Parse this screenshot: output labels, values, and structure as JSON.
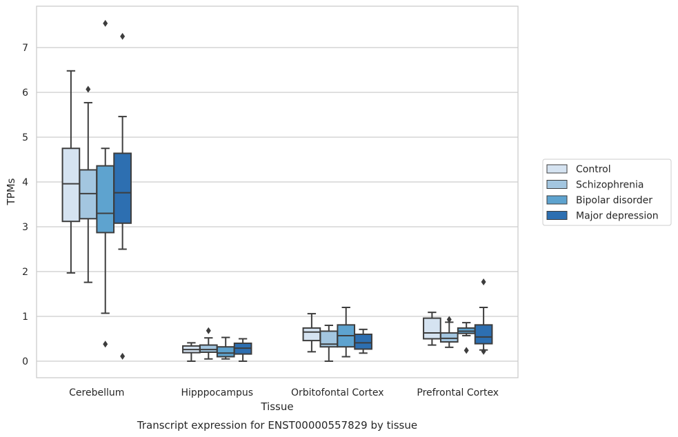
{
  "caption": "Transcript expression for ENST00000557829 by tissue",
  "chart_data": {
    "type": "box",
    "xlabel": "Tissue",
    "ylabel": "TPMs",
    "ylim": [
      -0.35,
      7.95
    ],
    "yticks": [
      0,
      1,
      2,
      3,
      4,
      5,
      6,
      7
    ],
    "grid": "horizontal",
    "legend_position": "right",
    "categories": [
      "Cerebellum",
      "Hipppocampus",
      "Orbitofontal Cortex",
      "Prefrontal Cortex"
    ],
    "series": [
      {
        "name": "Control",
        "color": "#d5e3f1",
        "boxes": [
          {
            "whisker_low": 1.97,
            "q1": 3.12,
            "median": 3.96,
            "q3": 4.75,
            "whisker_high": 6.48,
            "outliers": []
          },
          {
            "whisker_low": 0.0,
            "q1": 0.19,
            "median": 0.26,
            "q3": 0.34,
            "whisker_high": 0.41,
            "outliers": []
          },
          {
            "whisker_low": 0.21,
            "q1": 0.46,
            "median": 0.65,
            "q3": 0.74,
            "whisker_high": 1.06,
            "outliers": []
          },
          {
            "whisker_low": 0.36,
            "q1": 0.5,
            "median": 0.63,
            "q3": 0.96,
            "whisker_high": 1.09,
            "outliers": []
          }
        ]
      },
      {
        "name": "Schizophrenia",
        "color": "#a3c6e0",
        "boxes": [
          {
            "whisker_low": 1.76,
            "q1": 3.18,
            "median": 3.74,
            "q3": 4.27,
            "whisker_high": 5.77,
            "outliers": [
              6.07
            ]
          },
          {
            "whisker_low": 0.05,
            "q1": 0.2,
            "median": 0.26,
            "q3": 0.36,
            "whisker_high": 0.52,
            "outliers": [
              0.68
            ]
          },
          {
            "whisker_low": 0.0,
            "q1": 0.32,
            "median": 0.38,
            "q3": 0.67,
            "whisker_high": 0.8,
            "outliers": []
          },
          {
            "whisker_low": 0.31,
            "q1": 0.43,
            "median": 0.51,
            "q3": 0.63,
            "whisker_high": 0.87,
            "outliers": [
              0.93
            ]
          }
        ]
      },
      {
        "name": "Bipolar disorder",
        "color": "#5ea3cf",
        "boxes": [
          {
            "whisker_low": 1.07,
            "q1": 2.87,
            "median": 3.3,
            "q3": 4.36,
            "whisker_high": 4.75,
            "outliers": [
              0.38,
              7.54
            ]
          },
          {
            "whisker_low": 0.05,
            "q1": 0.1,
            "median": 0.18,
            "q3": 0.32,
            "whisker_high": 0.53,
            "outliers": []
          },
          {
            "whisker_low": 0.1,
            "q1": 0.32,
            "median": 0.57,
            "q3": 0.81,
            "whisker_high": 1.2,
            "outliers": []
          },
          {
            "whisker_low": 0.57,
            "q1": 0.62,
            "median": 0.67,
            "q3": 0.74,
            "whisker_high": 0.86,
            "outliers": [
              0.24
            ]
          }
        ]
      },
      {
        "name": "Major depression",
        "color": "#2d6fb1",
        "boxes": [
          {
            "whisker_low": 2.5,
            "q1": 3.08,
            "median": 3.76,
            "q3": 4.64,
            "whisker_high": 5.46,
            "outliers": [
              0.11,
              7.25
            ]
          },
          {
            "whisker_low": 0.0,
            "q1": 0.16,
            "median": 0.29,
            "q3": 0.4,
            "whisker_high": 0.5,
            "outliers": []
          },
          {
            "whisker_low": 0.18,
            "q1": 0.27,
            "median": 0.41,
            "q3": 0.6,
            "whisker_high": 0.71,
            "outliers": []
          },
          {
            "whisker_low": 0.25,
            "q1": 0.39,
            "median": 0.54,
            "q3": 0.81,
            "whisker_high": 1.2,
            "outliers": [
              0.22,
              1.77
            ]
          }
        ]
      }
    ]
  }
}
